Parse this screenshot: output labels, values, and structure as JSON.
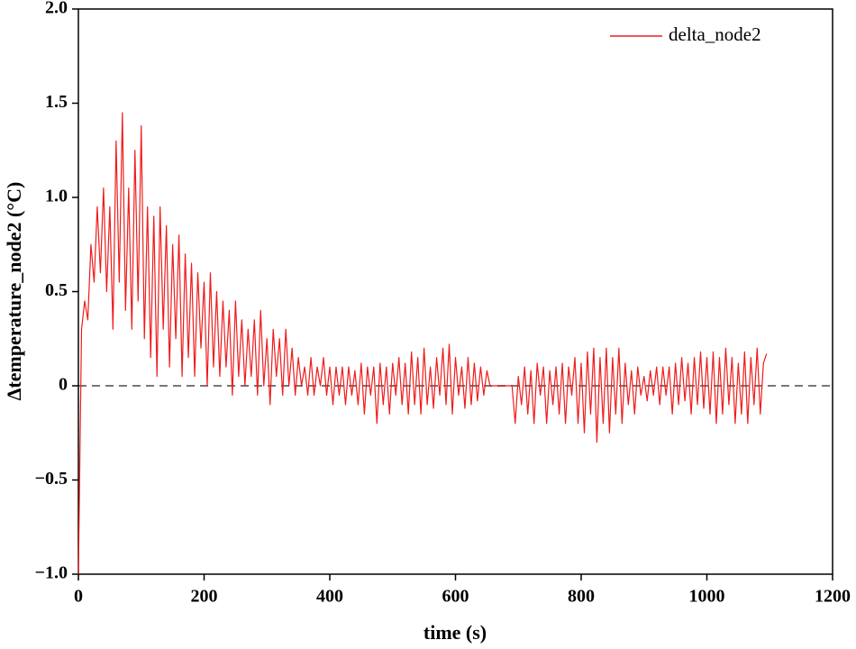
{
  "chart_data": {
    "type": "line",
    "xlabel": "time (s)",
    "ylabel": "Δtemperature_node2 (°C)",
    "x": [
      0,
      5,
      10,
      15,
      20,
      25,
      30,
      35,
      40,
      45,
      50,
      55,
      60,
      65,
      70,
      75,
      80,
      85,
      90,
      95,
      100,
      105,
      110,
      115,
      120,
      125,
      130,
      135,
      140,
      145,
      150,
      155,
      160,
      165,
      170,
      175,
      180,
      185,
      190,
      195,
      200,
      205,
      210,
      215,
      220,
      225,
      230,
      235,
      240,
      245,
      250,
      255,
      260,
      265,
      270,
      275,
      280,
      285,
      290,
      295,
      300,
      305,
      310,
      315,
      320,
      325,
      330,
      335,
      340,
      345,
      350,
      355,
      360,
      365,
      370,
      375,
      380,
      385,
      390,
      395,
      400,
      405,
      410,
      415,
      420,
      425,
      430,
      435,
      440,
      445,
      450,
      455,
      460,
      465,
      470,
      475,
      480,
      485,
      490,
      495,
      500,
      505,
      510,
      515,
      520,
      525,
      530,
      535,
      540,
      545,
      550,
      555,
      560,
      565,
      570,
      575,
      580,
      585,
      590,
      595,
      600,
      605,
      610,
      615,
      620,
      625,
      630,
      635,
      640,
      645,
      650,
      655,
      660,
      665,
      670,
      675,
      680,
      685,
      690,
      695,
      700,
      705,
      710,
      715,
      720,
      725,
      730,
      735,
      740,
      745,
      750,
      755,
      760,
      765,
      770,
      775,
      780,
      785,
      790,
      795,
      800,
      805,
      810,
      815,
      820,
      825,
      830,
      835,
      840,
      845,
      850,
      855,
      860,
      865,
      870,
      875,
      880,
      885,
      890,
      895,
      900,
      905,
      910,
      915,
      920,
      925,
      930,
      935,
      940,
      945,
      950,
      955,
      960,
      965,
      970,
      975,
      980,
      985,
      990,
      995,
      1000,
      1005,
      1010,
      1015,
      1020,
      1025,
      1030,
      1035,
      1040,
      1045,
      1050,
      1055,
      1060,
      1065,
      1070,
      1075,
      1080,
      1085,
      1090,
      1095
    ],
    "series": [
      {
        "name": "delta_node2",
        "color": "#ee1c1c",
        "values": [
          -1.0,
          0.3,
          0.45,
          0.35,
          0.75,
          0.55,
          0.95,
          0.6,
          1.05,
          0.5,
          0.95,
          0.3,
          1.3,
          0.55,
          1.45,
          0.4,
          1.05,
          0.3,
          1.25,
          0.45,
          1.38,
          0.25,
          0.95,
          0.15,
          0.9,
          0.05,
          0.95,
          0.3,
          0.85,
          0.1,
          0.75,
          0.25,
          0.8,
          0.05,
          0.7,
          0.15,
          0.65,
          0.05,
          0.6,
          0.2,
          0.55,
          0,
          0.6,
          0.1,
          0.5,
          0.05,
          0.45,
          0.1,
          0.4,
          -0.05,
          0.45,
          0.05,
          0.35,
          0,
          0.3,
          0.05,
          0.35,
          -0.05,
          0.4,
          0,
          0.25,
          -0.1,
          0.3,
          0.05,
          0.25,
          -0.05,
          0.3,
          0,
          0.2,
          -0.05,
          0.15,
          0,
          0.1,
          -0.05,
          0.15,
          -0.05,
          0.1,
          0,
          0.15,
          -0.05,
          0.1,
          -0.1,
          0.1,
          -0.05,
          0.1,
          -0.1,
          0.1,
          -0.05,
          0.08,
          -0.1,
          0.12,
          -0.15,
          0.1,
          -0.05,
          0.1,
          -0.2,
          0.12,
          -0.1,
          0.1,
          -0.15,
          0.12,
          -0.05,
          0.15,
          -0.1,
          0.12,
          -0.15,
          0.18,
          -0.1,
          0.15,
          -0.15,
          0.2,
          -0.1,
          0.1,
          -0.12,
          0.15,
          -0.05,
          0.2,
          -0.1,
          0.22,
          -0.15,
          0.15,
          -0.05,
          0.1,
          -0.12,
          0.15,
          -0.1,
          0.12,
          -0.08,
          0.1,
          -0.05,
          0.08,
          0,
          0,
          0,
          0,
          0,
          0,
          0,
          0,
          -0.2,
          0.05,
          -0.1,
          0.1,
          -0.15,
          0.08,
          -0.2,
          0.12,
          -0.05,
          0.1,
          -0.2,
          0.08,
          -0.1,
          0.1,
          -0.15,
          0.12,
          -0.2,
          0.1,
          -0.05,
          0.15,
          -0.2,
          0.12,
          -0.25,
          0.18,
          -0.15,
          0.2,
          -0.3,
          0.15,
          -0.2,
          0.2,
          -0.25,
          0.15,
          -0.15,
          0.2,
          -0.2,
          0.12,
          -0.1,
          0.08,
          -0.15,
          0.1,
          -0.05,
          0.05,
          -0.08,
          0.08,
          -0.05,
          0.1,
          -0.1,
          0.1,
          -0.05,
          0.1,
          -0.15,
          0.12,
          -0.1,
          0.15,
          -0.08,
          0.12,
          -0.15,
          0.15,
          -0.1,
          0.18,
          -0.12,
          0.15,
          -0.15,
          0.18,
          -0.2,
          0.15,
          -0.15,
          0.2,
          -0.1,
          0.15,
          -0.2,
          0.12,
          -0.15,
          0.18,
          -0.2,
          0.15,
          -0.1,
          0.2,
          -0.15,
          0.12,
          0.17
        ]
      }
    ],
    "xlim": [
      0,
      1200
    ],
    "xticks": [
      0,
      200,
      400,
      600,
      800,
      1000,
      1200
    ],
    "ylim": [
      -1,
      2
    ],
    "yticks": [
      {
        "value": -1,
        "label": "−1.0"
      },
      {
        "value": -0.5,
        "label": "−0.5"
      },
      0,
      {
        "value": 0.5,
        "label": "0.5"
      },
      {
        "value": 1,
        "label": "1.0"
      },
      {
        "value": 1.5,
        "label": "1.5"
      },
      {
        "value": 2,
        "label": "2.0"
      }
    ],
    "reference_line": {
      "y": 0,
      "color": "#777777"
    },
    "legend": "upper right"
  }
}
